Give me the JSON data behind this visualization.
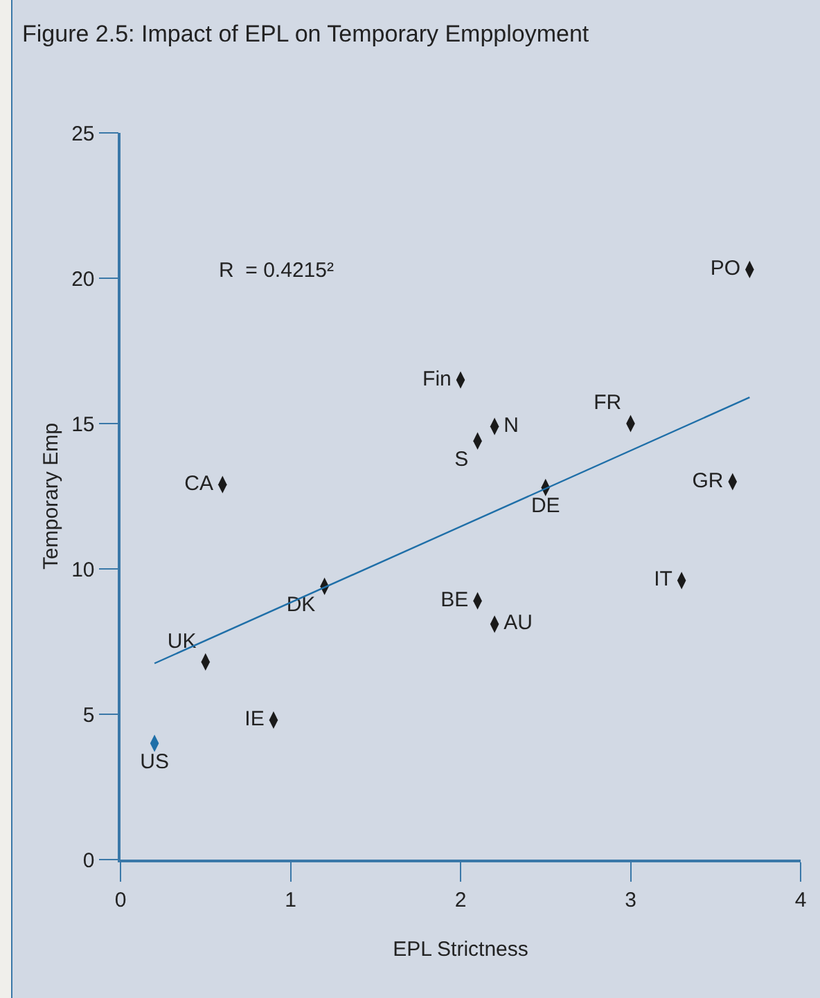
{
  "chart_data": {
    "type": "scatter",
    "title": "Figure 2.5: Impact of EPL on Temporary Empployment",
    "xlabel": "EPL Strictness",
    "ylabel": "Temporary Emp",
    "xlim": [
      0,
      4
    ],
    "ylim": [
      0,
      25
    ],
    "xticks": [
      0,
      1,
      2,
      3,
      4
    ],
    "yticks": [
      0,
      5,
      10,
      15,
      20,
      25
    ],
    "grid": false,
    "legend": false,
    "marker": "diamond",
    "annotations": [
      "R  = 0.4215²"
    ],
    "series": [
      {
        "name": "US",
        "color": "#1f6fa8",
        "x": [
          0.2
        ],
        "values": [
          4.0
        ]
      },
      {
        "name": "UK",
        "color": "#1a1a1a",
        "x": [
          0.5
        ],
        "values": [
          6.8
        ]
      },
      {
        "name": "IE",
        "color": "#1a1a1a",
        "x": [
          0.9
        ],
        "values": [
          4.8
        ]
      },
      {
        "name": "DK",
        "color": "#1a1a1a",
        "x": [
          1.2
        ],
        "values": [
          9.4
        ]
      },
      {
        "name": "CA",
        "color": "#1a1a1a",
        "x": [
          0.6
        ],
        "values": [
          12.9
        ]
      },
      {
        "name": "Fin",
        "color": "#1a1a1a",
        "x": [
          2.0
        ],
        "values": [
          16.5
        ]
      },
      {
        "name": "S",
        "color": "#1a1a1a",
        "x": [
          2.1
        ],
        "values": [
          14.4
        ]
      },
      {
        "name": "N",
        "color": "#1a1a1a",
        "x": [
          2.2
        ],
        "values": [
          14.9
        ]
      },
      {
        "name": "BE",
        "color": "#1a1a1a",
        "x": [
          2.1
        ],
        "values": [
          8.9
        ]
      },
      {
        "name": "AU",
        "color": "#1a1a1a",
        "x": [
          2.2
        ],
        "values": [
          8.1
        ]
      },
      {
        "name": "DE",
        "color": "#1a1a1a",
        "x": [
          2.5
        ],
        "values": [
          12.8
        ]
      },
      {
        "name": "FR",
        "color": "#1a1a1a",
        "x": [
          3.0
        ],
        "values": [
          15.0
        ]
      },
      {
        "name": "IT",
        "color": "#1a1a1a",
        "x": [
          3.3
        ],
        "values": [
          9.6
        ]
      },
      {
        "name": "GR",
        "color": "#1a1a1a",
        "x": [
          3.6
        ],
        "values": [
          13.0
        ]
      },
      {
        "name": "PO",
        "color": "#1a1a1a",
        "x": [
          3.7
        ],
        "values": [
          20.3
        ]
      },
      {
        "type": "line",
        "color": "#1f6fa8",
        "marker": "none",
        "x": [
          0.2,
          3.7
        ],
        "values": [
          6.75,
          15.9
        ]
      }
    ]
  }
}
